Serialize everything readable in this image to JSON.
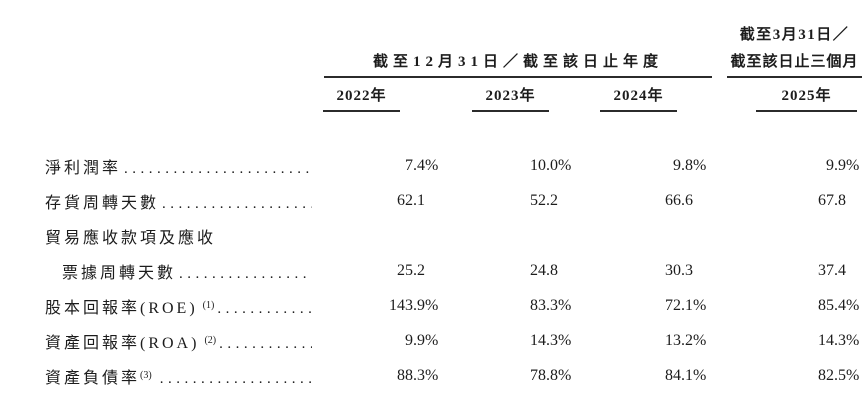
{
  "table": {
    "group_headers": {
      "annual": {
        "label": "截至12月31日／截至該日止年度"
      },
      "interim": {
        "line1": "截至3月31日／",
        "line2": "截至該日止三個月"
      }
    },
    "year_headers": [
      "2022年",
      "2023年",
      "2024年",
      "2025年"
    ],
    "rows": [
      {
        "label": "淨利潤率",
        "sup": "",
        "sup_gap": false,
        "indent": false,
        "dots": true,
        "values": [
          "7.4%",
          "10.0%",
          "9.8%",
          "9.9%"
        ]
      },
      {
        "label": "存貨周轉天數",
        "sup": "",
        "sup_gap": false,
        "indent": false,
        "dots": true,
        "values": [
          "62.1",
          "52.2",
          "66.6",
          "67.8"
        ]
      },
      {
        "label": "貿易應收款項及應收",
        "sup": "",
        "sup_gap": false,
        "indent": false,
        "dots": false,
        "values": [
          "",
          "",
          "",
          ""
        ]
      },
      {
        "label": "票據周轉天數",
        "sup": "",
        "sup_gap": false,
        "indent": true,
        "dots": true,
        "values": [
          "25.2",
          "24.8",
          "30.3",
          "37.4"
        ]
      },
      {
        "label": "股本回報率(ROE)",
        "sup": "(1)",
        "sup_gap": true,
        "indent": false,
        "dots": true,
        "values": [
          "143.9%",
          "83.3%",
          "72.1%",
          "85.4%"
        ]
      },
      {
        "label": "資產回報率(ROA)",
        "sup": "(2)",
        "sup_gap": true,
        "indent": false,
        "dots": true,
        "values": [
          "9.9%",
          "14.3%",
          "13.2%",
          "14.3%"
        ]
      },
      {
        "label": "資產負債率",
        "sup": "(3)",
        "sup_gap": false,
        "indent": false,
        "dots": true,
        "values": [
          "88.3%",
          "78.8%",
          "84.1%",
          "82.5%"
        ]
      }
    ],
    "colors": {
      "text": "#1c1c1c",
      "rule": "#2b2b2b",
      "background": "#ffffff"
    }
  }
}
